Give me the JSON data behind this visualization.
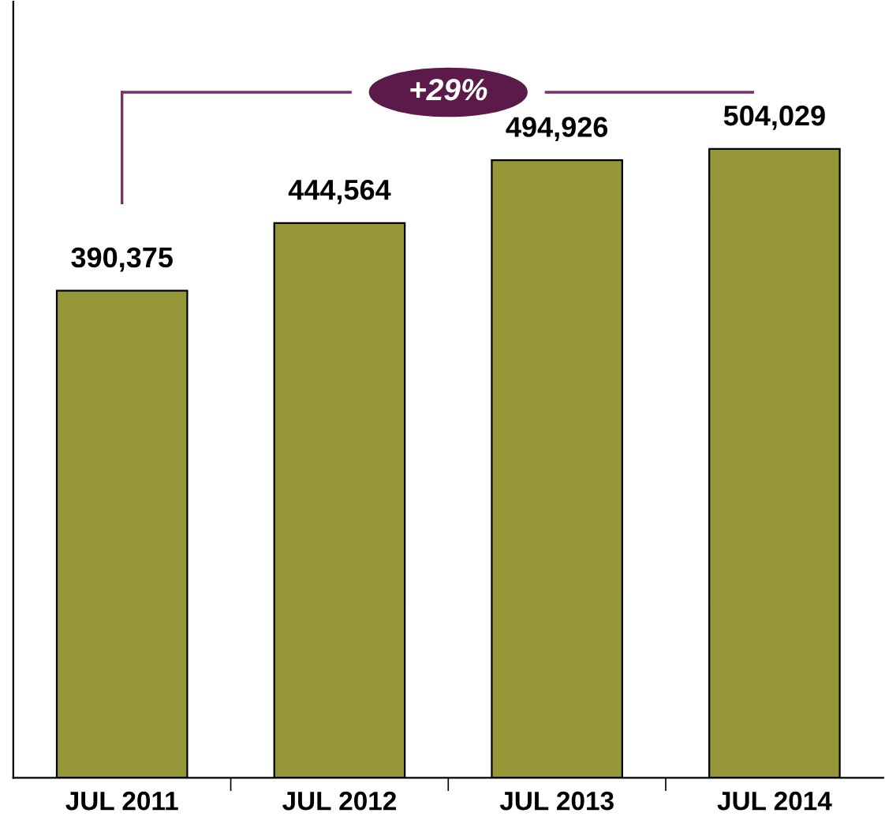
{
  "chart_data": {
    "type": "bar",
    "categories": [
      "JUL 2011",
      "JUL 2012",
      "JUL 2013",
      "JUL 2014"
    ],
    "values": [
      390375,
      444564,
      494926,
      504029
    ],
    "value_labels": [
      "390,375",
      "444,564",
      "494,926",
      "504,029"
    ],
    "color": "#959637",
    "ylim": [
      0,
      622000
    ],
    "tick_labels": "x",
    "grid": false,
    "legend": false,
    "annotations": [
      "+29%"
    ]
  }
}
